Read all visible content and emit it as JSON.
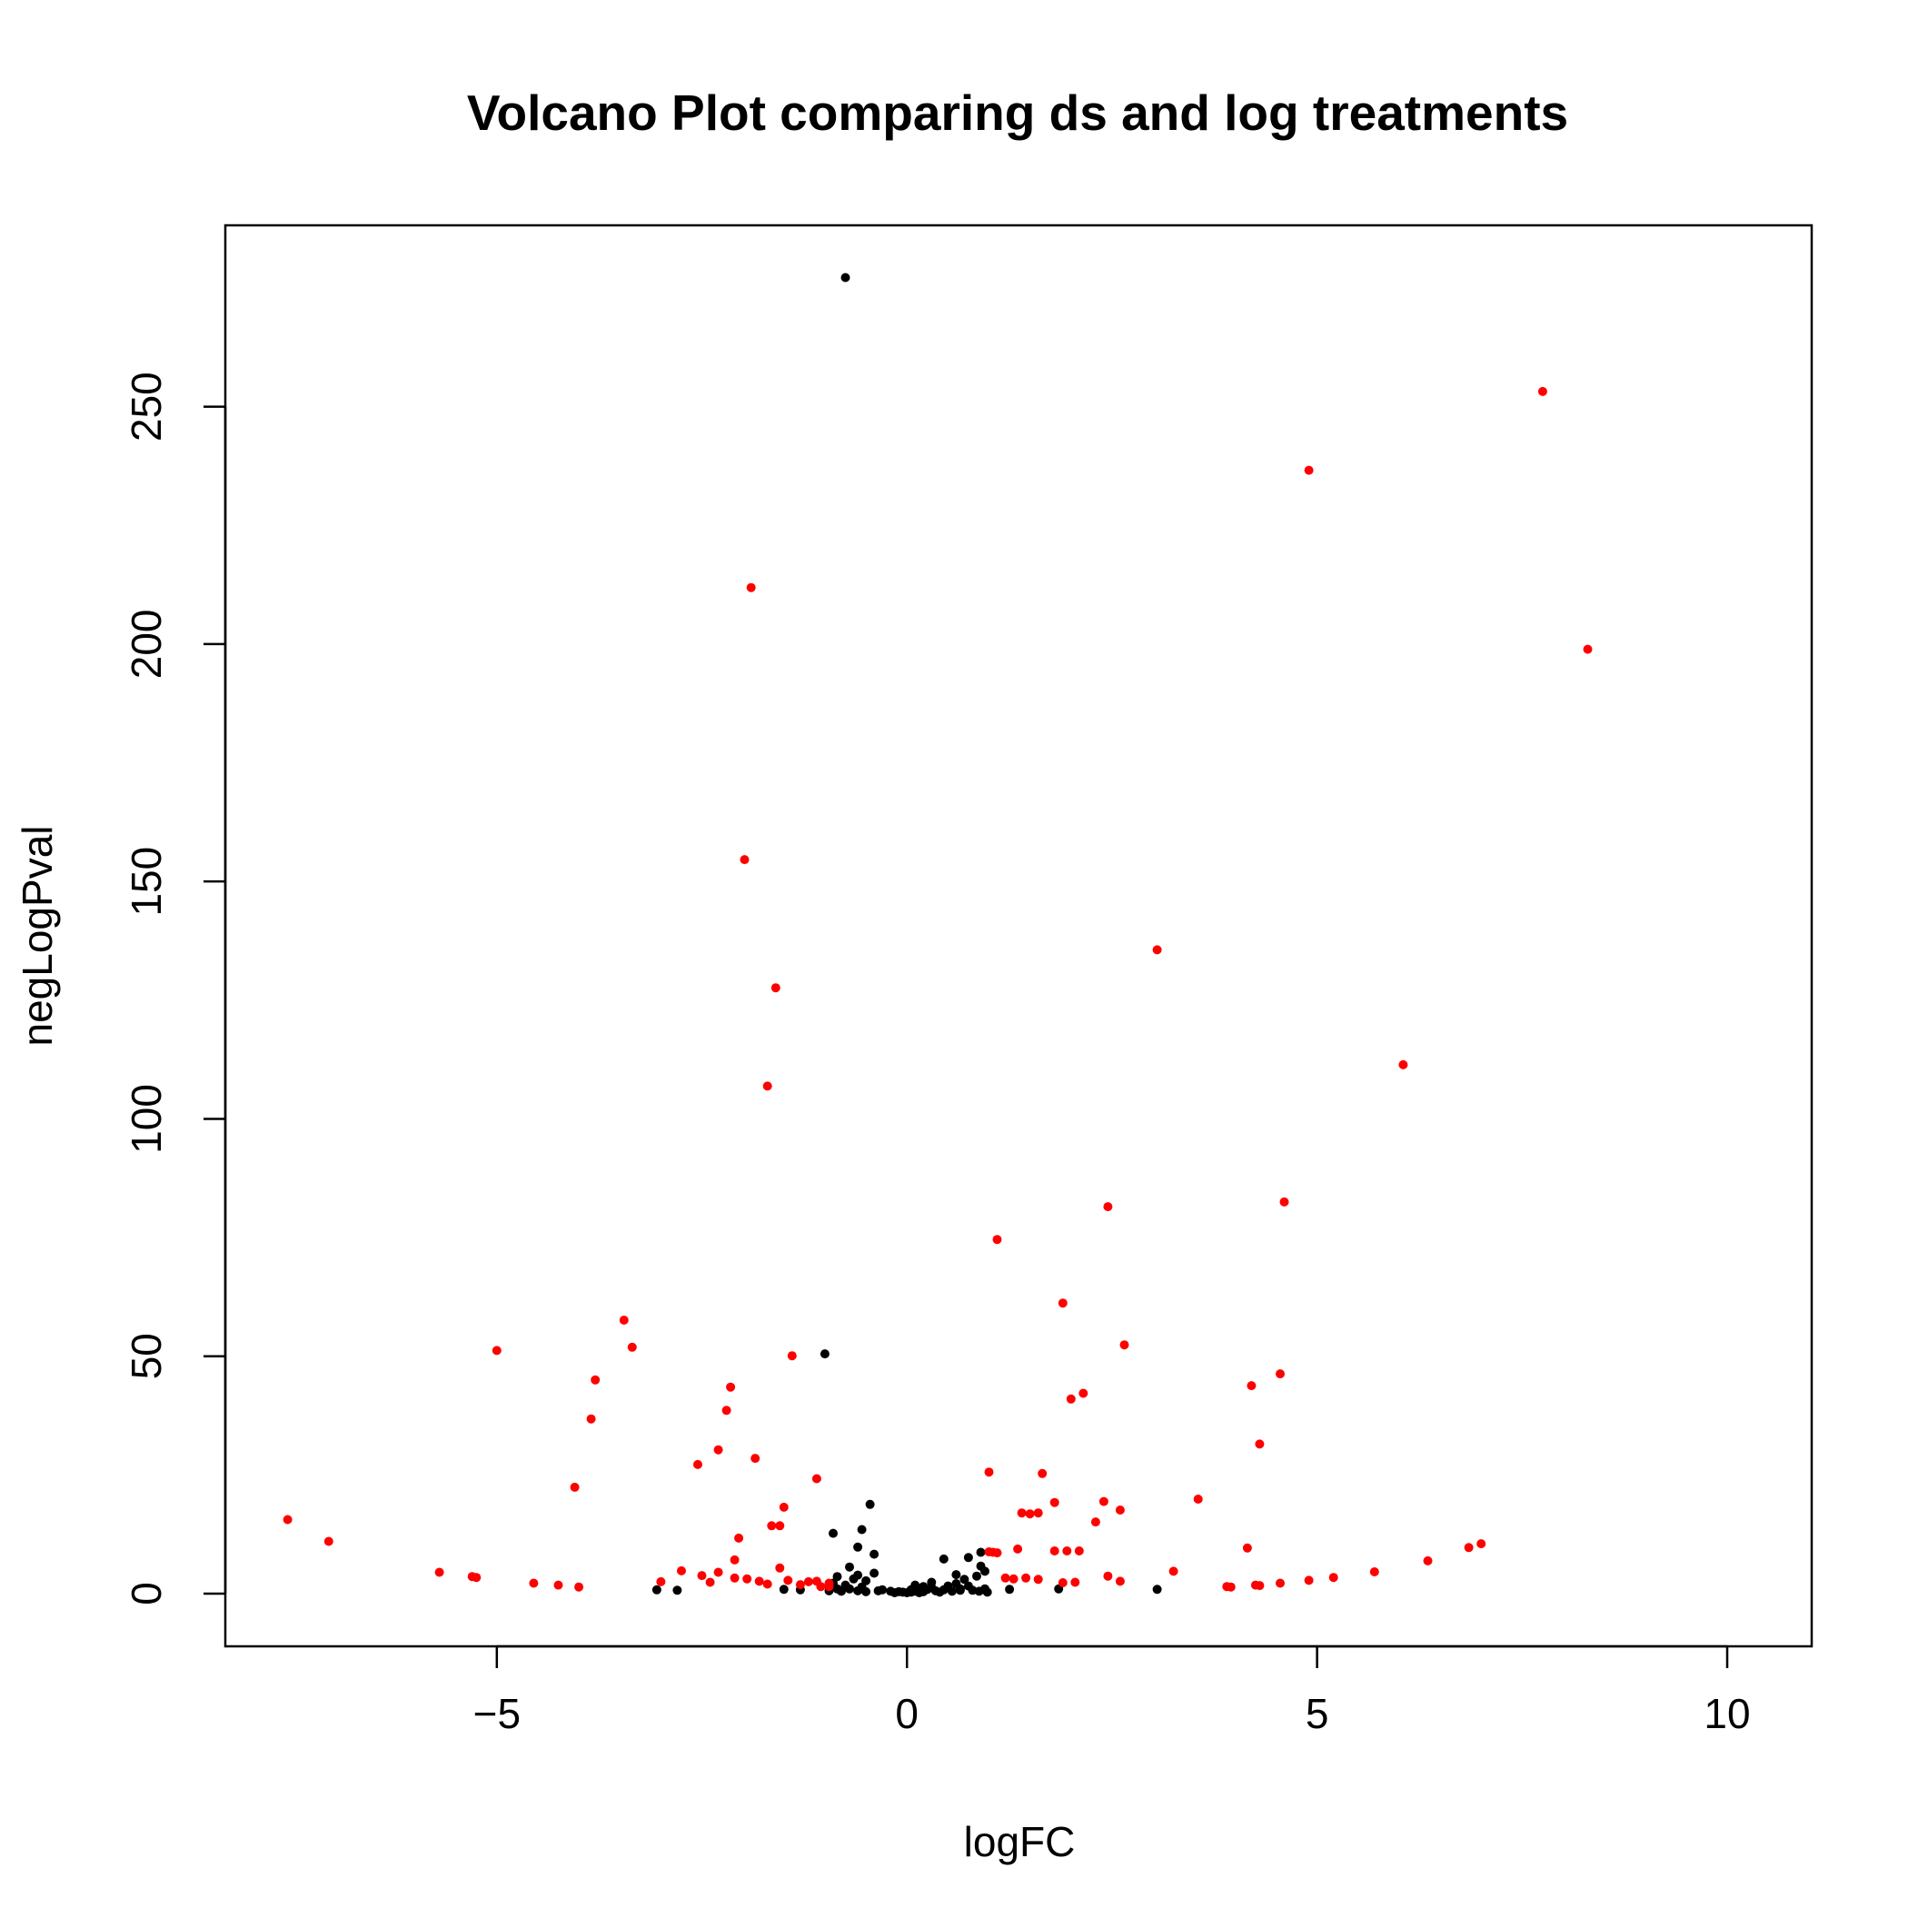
{
  "chart_data": {
    "type": "scatter",
    "title": "Volcano Plot comparing ds and log treatments",
    "xlabel": "logFC",
    "ylabel": "negLogPval",
    "xlim": [
      -8.31,
      11.03
    ],
    "ylim": [
      -11.1,
      288.2
    ],
    "x_ticks": [
      {
        "value": -5,
        "label": "−5"
      },
      {
        "value": 0,
        "label": "0"
      },
      {
        "value": 5,
        "label": "5"
      },
      {
        "value": 10,
        "label": "10"
      }
    ],
    "y_ticks": [
      {
        "value": 0,
        "label": "0"
      },
      {
        "value": 50,
        "label": "50"
      },
      {
        "value": 100,
        "label": "100"
      },
      {
        "value": 150,
        "label": "150"
      },
      {
        "value": 200,
        "label": "200"
      },
      {
        "value": 250,
        "label": "250"
      }
    ],
    "grid": false,
    "legend": "none",
    "series": [
      {
        "color": "#000000",
        "points": [
          [
            -0.75,
            277.2
          ],
          [
            -1.0,
            50.5
          ],
          [
            -0.45,
            18.8
          ],
          [
            -0.55,
            13.5
          ],
          [
            -0.9,
            12.7
          ],
          [
            -0.6,
            9.8
          ],
          [
            -0.4,
            8.3
          ],
          [
            -0.7,
            5.6
          ],
          [
            -0.4,
            4.3
          ],
          [
            -0.6,
            3.9
          ],
          [
            -0.85,
            3.6
          ],
          [
            -0.65,
            3.1
          ],
          [
            -0.5,
            2.7
          ],
          [
            -0.9,
            2.2
          ],
          [
            -0.75,
            1.8
          ],
          [
            -0.55,
            1.4
          ],
          [
            -0.85,
            1.0
          ],
          [
            -0.7,
            1.0
          ],
          [
            -0.3,
            0.8
          ],
          [
            -0.95,
            0.6
          ],
          [
            -0.6,
            0.6
          ],
          [
            -0.2,
            0.5
          ],
          [
            -0.1,
            0.4
          ],
          [
            -0.05,
            0.3
          ],
          [
            0.0,
            0.2
          ],
          [
            0.05,
            0.3
          ],
          [
            0.1,
            0.5
          ],
          [
            0.15,
            0.6
          ],
          [
            0.2,
            0.4
          ],
          [
            0.25,
            0.9
          ],
          [
            0.3,
            1.3
          ],
          [
            0.35,
            0.6
          ],
          [
            0.45,
            0.8
          ],
          [
            0.5,
            1.6
          ],
          [
            0.55,
            0.5
          ],
          [
            0.6,
            2.1
          ],
          [
            0.65,
            1.0
          ],
          [
            0.7,
            3.0
          ],
          [
            0.75,
            1.6
          ],
          [
            0.8,
            0.7
          ],
          [
            0.85,
            3.7
          ],
          [
            0.9,
            5.8
          ],
          [
            0.95,
            4.7
          ],
          [
            0.9,
            8.7
          ],
          [
            0.75,
            7.6
          ],
          [
            0.45,
            7.3
          ],
          [
            0.3,
            2.4
          ],
          [
            0.2,
            1.5
          ],
          [
            0.05,
            0.8
          ],
          [
            0.95,
            1.0
          ],
          [
            0.98,
            0.3
          ],
          [
            0.88,
            0.5
          ],
          [
            0.1,
            1.8
          ],
          [
            0.6,
            4.0
          ],
          [
            1.25,
            0.9
          ],
          [
            1.85,
            1.0
          ],
          [
            3.05,
            0.9
          ],
          [
            -3.05,
            0.8
          ],
          [
            -2.8,
            0.7
          ],
          [
            -1.5,
            0.9
          ],
          [
            -1.3,
            0.8
          ],
          [
            -0.35,
            0.6
          ],
          [
            0.4,
            0.3
          ],
          [
            0.15,
            0.2
          ],
          [
            -0.15,
            0.2
          ],
          [
            0.65,
            0.7
          ],
          [
            -0.8,
            0.5
          ],
          [
            -0.5,
            0.4
          ]
        ]
      },
      {
        "color": "#ff0000",
        "points": [
          [
            7.75,
            253.2
          ],
          [
            4.9,
            236.6
          ],
          [
            8.3,
            198.9
          ],
          [
            -1.9,
            211.9
          ],
          [
            -1.98,
            154.6
          ],
          [
            -1.6,
            127.6
          ],
          [
            -1.7,
            106.9
          ],
          [
            3.05,
            135.6
          ],
          [
            6.05,
            111.4
          ],
          [
            4.6,
            82.5
          ],
          [
            2.45,
            81.5
          ],
          [
            1.1,
            74.6
          ],
          [
            1.9,
            61.2
          ],
          [
            -3.45,
            57.6
          ],
          [
            -3.35,
            51.9
          ],
          [
            -5.0,
            51.2
          ],
          [
            -1.4,
            50.1
          ],
          [
            2.65,
            52.4
          ],
          [
            4.55,
            46.3
          ],
          [
            -3.8,
            45.0
          ],
          [
            -2.15,
            43.5
          ],
          [
            4.2,
            43.8
          ],
          [
            2.15,
            42.2
          ],
          [
            2.0,
            41.0
          ],
          [
            -2.2,
            38.6
          ],
          [
            -3.85,
            36.8
          ],
          [
            4.3,
            31.5
          ],
          [
            -2.3,
            30.3
          ],
          [
            -1.85,
            28.5
          ],
          [
            -2.55,
            27.2
          ],
          [
            1.0,
            25.6
          ],
          [
            1.65,
            25.3
          ],
          [
            -1.1,
            24.2
          ],
          [
            -4.05,
            22.4
          ],
          [
            3.55,
            19.9
          ],
          [
            2.4,
            19.4
          ],
          [
            1.8,
            19.2
          ],
          [
            -1.5,
            18.2
          ],
          [
            2.6,
            17.6
          ],
          [
            1.4,
            17.0
          ],
          [
            1.6,
            17.0
          ],
          [
            1.5,
            16.8
          ],
          [
            2.3,
            15.1
          ],
          [
            -7.55,
            15.6
          ],
          [
            -1.65,
            14.3
          ],
          [
            -1.55,
            14.3
          ],
          [
            -7.05,
            11.0
          ],
          [
            -2.05,
            11.7
          ],
          [
            4.15,
            9.6
          ],
          [
            6.85,
            9.7
          ],
          [
            7.0,
            10.5
          ],
          [
            1.0,
            8.8
          ],
          [
            1.05,
            8.7
          ],
          [
            1.1,
            8.6
          ],
          [
            1.35,
            9.4
          ],
          [
            1.8,
            9.0
          ],
          [
            1.95,
            9.0
          ],
          [
            2.1,
            9.0
          ],
          [
            6.35,
            6.9
          ],
          [
            -2.1,
            7.1
          ],
          [
            -1.55,
            5.4
          ],
          [
            3.25,
            4.7
          ],
          [
            5.7,
            4.6
          ],
          [
            -5.7,
            4.5
          ],
          [
            -2.75,
            4.8
          ],
          [
            -2.3,
            4.5
          ],
          [
            -5.3,
            3.6
          ],
          [
            -5.25,
            3.4
          ],
          [
            -2.5,
            3.8
          ],
          [
            -2.1,
            3.3
          ],
          [
            -1.95,
            3.1
          ],
          [
            -1.8,
            2.6
          ],
          [
            -1.45,
            2.8
          ],
          [
            -1.2,
            2.5
          ],
          [
            -1.1,
            2.6
          ],
          [
            -0.95,
            2.2
          ],
          [
            1.2,
            3.3
          ],
          [
            1.3,
            3.1
          ],
          [
            1.45,
            3.3
          ],
          [
            1.6,
            3.0
          ],
          [
            2.45,
            3.7
          ],
          [
            2.6,
            2.6
          ],
          [
            4.55,
            2.2
          ],
          [
            4.9,
            2.8
          ],
          [
            5.2,
            3.4
          ],
          [
            -3.0,
            2.5
          ],
          [
            -2.4,
            2.4
          ],
          [
            -1.7,
            2.0
          ],
          [
            -1.3,
            1.9
          ],
          [
            -4.55,
            2.2
          ],
          [
            -4.25,
            1.8
          ],
          [
            -4.0,
            1.4
          ],
          [
            3.9,
            1.5
          ],
          [
            3.95,
            1.4
          ],
          [
            4.25,
            1.8
          ],
          [
            4.3,
            1.7
          ],
          [
            1.9,
            2.3
          ],
          [
            2.05,
            2.4
          ],
          [
            -1.05,
            1.5
          ],
          [
            -0.95,
            1.5
          ]
        ]
      }
    ]
  }
}
